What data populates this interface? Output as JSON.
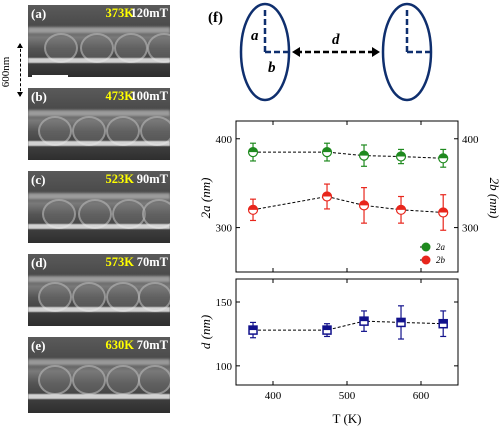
{
  "figure": {
    "scale_label": "600nm",
    "panels": [
      {
        "label": "(a)",
        "temperature": "373K",
        "field": "120mT"
      },
      {
        "label": "(b)",
        "temperature": "473K",
        "field": "100mT"
      },
      {
        "label": "(c)",
        "temperature": "523K",
        "field": "90mT"
      },
      {
        "label": "(d)",
        "temperature": "573K",
        "field": "70mT"
      },
      {
        "label": "(e)",
        "temperature": "630K",
        "field": "70mT"
      }
    ],
    "schematic": {
      "panel_label": "(f)",
      "a_label": "a",
      "b_label": "b",
      "d_label": "d"
    },
    "colors": {
      "green": "#1f8a1f",
      "red": "#e8261c",
      "blue": "#12128c",
      "ellipse": "#0f2f6e",
      "yellow": "#ffff00"
    }
  },
  "chart_data": [
    {
      "type": "scatter",
      "title": "",
      "xlabel": "",
      "ylabel": "2a (nm)",
      "ylabel_right": "2b (nm)",
      "xlim": [
        350,
        650
      ],
      "ylim": [
        250,
        420
      ],
      "yticks": [
        300,
        400
      ],
      "x": [
        373,
        473,
        523,
        573,
        630
      ],
      "series": [
        {
          "name": "2a",
          "values": [
            385,
            385,
            381,
            380,
            378
          ],
          "errors": [
            10,
            10,
            12,
            8,
            10
          ],
          "color": "#1f8a1f"
        },
        {
          "name": "2b",
          "values": [
            320,
            335,
            325,
            320,
            317
          ],
          "errors": [
            12,
            14,
            20,
            15,
            20
          ],
          "color": "#e8261c"
        }
      ],
      "legend": [
        "2a",
        "2b"
      ],
      "legend_position": "bottom-right",
      "grid": false
    },
    {
      "type": "scatter",
      "title": "",
      "xlabel": "T (K)",
      "ylabel": "d (nm)",
      "xlim": [
        350,
        650
      ],
      "ylim": [
        85,
        168
      ],
      "yticks": [
        100,
        150
      ],
      "xticks": [
        400,
        500,
        600
      ],
      "x": [
        373,
        473,
        523,
        573,
        630
      ],
      "series": [
        {
          "name": "d",
          "values": [
            128,
            128,
            135,
            134,
            133
          ],
          "errors": [
            6,
            5,
            8,
            13,
            10
          ],
          "color": "#12128c"
        }
      ],
      "grid": false
    }
  ]
}
